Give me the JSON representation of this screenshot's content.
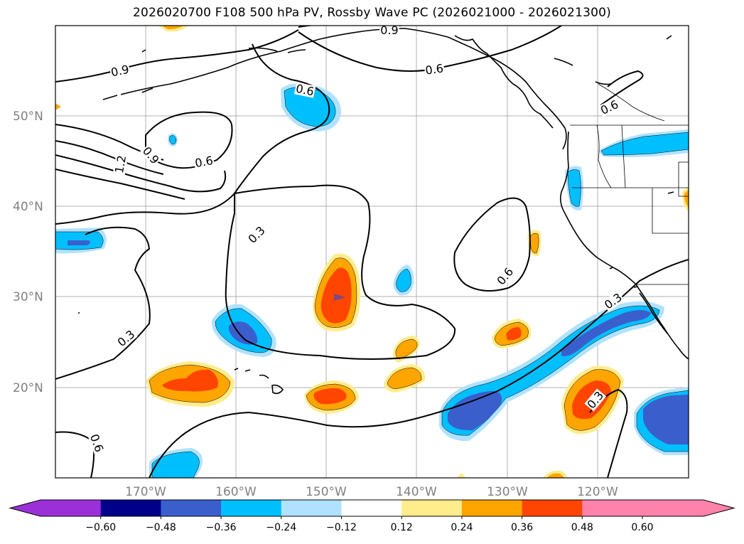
{
  "title": "2026020700 F108 500 hPa PV, Rossby Wave PC (2026021000 - 2026021300)",
  "lat_labels": [
    "50°N",
    "40°N",
    "30°N",
    "20°N"
  ],
  "lon_labels": [
    "170°W",
    "160°W",
    "150°W",
    "140°W",
    "130°W",
    "120°W"
  ],
  "contour_labels": [
    "0.9",
    "0.9",
    "0.6",
    "0.6",
    "0.6",
    "0.9",
    "1.2",
    "0.6",
    "0.3",
    "0.6",
    "0.3",
    "0.3",
    "0.6",
    "0.3"
  ],
  "colorbar": {
    "ticks": [
      "−0.60",
      "−0.48",
      "−0.36",
      "−0.24",
      "−0.12",
      "0.12",
      "0.24",
      "0.36",
      "0.48",
      "0.60"
    ],
    "colors": [
      "#9b30d9",
      "#00008b",
      "#3a5fcd",
      "#00bfff",
      "#b0e2ff",
      "#ffffff",
      "#ffec8b",
      "#ffa500",
      "#ff4500",
      "#b22222",
      "#ff82ab"
    ]
  },
  "fill_colors": {
    "neg_light": "#b0e2ff",
    "neg_mid": "#00bfff",
    "neg_strong": "#3a5fcd",
    "pos_light": "#ffec8b",
    "pos_mid": "#ffa500",
    "pos_strong": "#ff4500"
  }
}
